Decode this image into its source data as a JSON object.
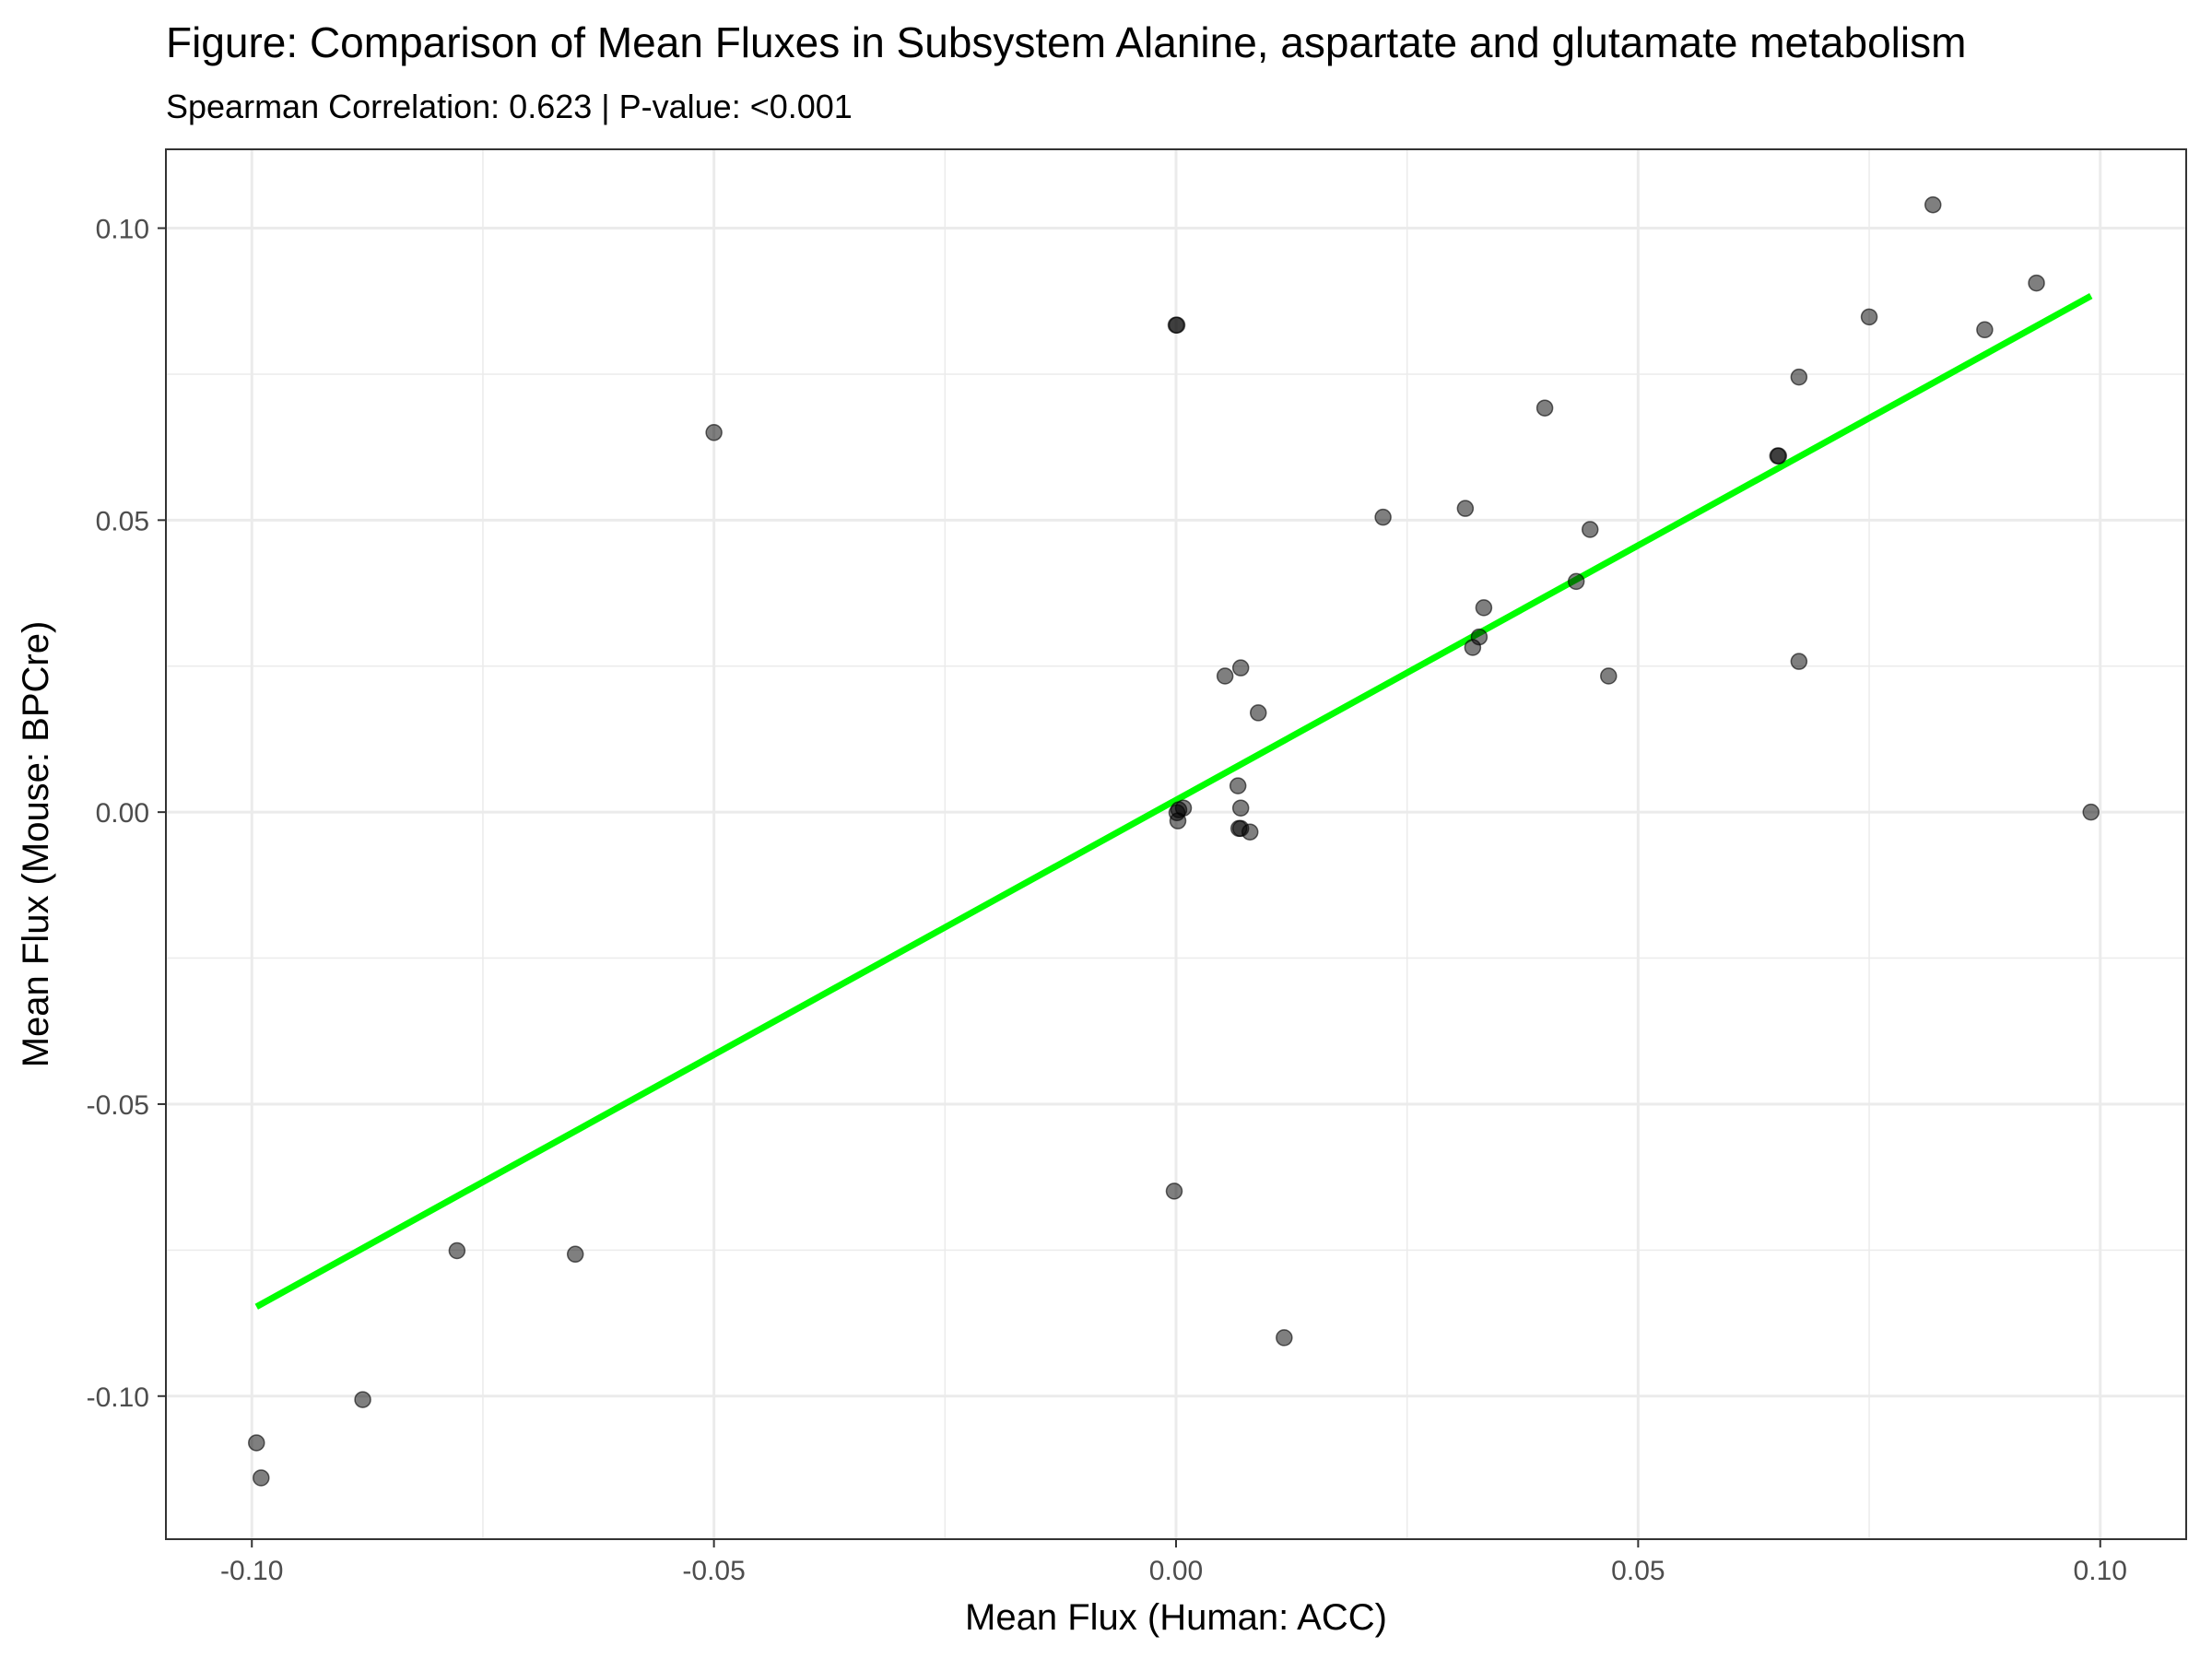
{
  "chart_data": {
    "type": "scatter",
    "title": "Figure: Comparison of Mean Fluxes in Subsystem Alanine, aspartate and glutamate metabolism",
    "subtitle": "Spearman Correlation: 0.623 | P-value: <0.001",
    "xlabel": "Mean Flux (Human: ACC)",
    "ylabel": "Mean Flux (Mouse: BPCre)",
    "xlim": [
      -0.1093,
      0.1093
    ],
    "ylim": [
      -0.1245,
      0.1135
    ],
    "x_ticks": [
      {
        "value": -0.1,
        "label": "-0.10"
      },
      {
        "value": -0.05,
        "label": "-0.05"
      },
      {
        "value": 0.0,
        "label": "0.00"
      },
      {
        "value": 0.05,
        "label": "0.05"
      },
      {
        "value": 0.1,
        "label": "0.10"
      }
    ],
    "y_ticks": [
      {
        "value": -0.1,
        "label": "-0.10"
      },
      {
        "value": -0.05,
        "label": "-0.05"
      },
      {
        "value": 0.0,
        "label": "0.00"
      },
      {
        "value": 0.05,
        "label": "0.05"
      },
      {
        "value": 0.1,
        "label": "0.10"
      }
    ],
    "grid": true,
    "colors": {
      "point": "#000000",
      "point_opacity": 0.5,
      "fit_line": "#00ff00",
      "grid": "#ebebeb",
      "panel_border": "#333333"
    },
    "points": [
      {
        "x": 0.0819,
        "y": 0.104
      },
      {
        "x": 0.0931,
        "y": 0.0906
      },
      {
        "x": 0.075,
        "y": 0.0848
      },
      {
        "x": 0.0875,
        "y": 0.0826
      },
      {
        "x": 0.0,
        "y": 0.0834
      },
      {
        "x": 0.0001,
        "y": 0.0834
      },
      {
        "x": 0.0674,
        "y": 0.0745
      },
      {
        "x": 0.0399,
        "y": 0.0692
      },
      {
        "x": -0.05,
        "y": 0.065
      },
      {
        "x": 0.0651,
        "y": 0.061
      },
      {
        "x": 0.0652,
        "y": 0.061
      },
      {
        "x": 0.0313,
        "y": 0.052
      },
      {
        "x": 0.0224,
        "y": 0.0505
      },
      {
        "x": 0.0448,
        "y": 0.0484
      },
      {
        "x": 0.0433,
        "y": 0.0395
      },
      {
        "x": 0.0333,
        "y": 0.035
      },
      {
        "x": 0.0328,
        "y": 0.03
      },
      {
        "x": 0.0321,
        "y": 0.0282
      },
      {
        "x": 0.0674,
        "y": 0.0258
      },
      {
        "x": 0.007,
        "y": 0.0247
      },
      {
        "x": 0.0053,
        "y": 0.0233
      },
      {
        "x": 0.0468,
        "y": 0.0233
      },
      {
        "x": 0.0089,
        "y": 0.017
      },
      {
        "x": 0.0067,
        "y": 0.0045
      },
      {
        "x": 0.0008,
        "y": 0.0007
      },
      {
        "x": 0.0003,
        "y": 0.0004
      },
      {
        "x": 0.0001,
        "y": -0.0001
      },
      {
        "x": 0.0002,
        "y": -0.0015
      },
      {
        "x": 0.007,
        "y": 0.0007
      },
      {
        "x": 0.0068,
        "y": -0.0028
      },
      {
        "x": 0.007,
        "y": -0.0028
      },
      {
        "x": 0.008,
        "y": -0.0034
      },
      {
        "x": 0.099,
        "y": 0.0
      },
      {
        "x": -0.0002,
        "y": -0.0649
      },
      {
        "x": -0.0778,
        "y": -0.0751
      },
      {
        "x": -0.065,
        "y": -0.0757
      },
      {
        "x": 0.0117,
        "y": -0.09
      },
      {
        "x": -0.088,
        "y": -0.1006
      },
      {
        "x": -0.0995,
        "y": -0.108
      },
      {
        "x": -0.099,
        "y": -0.114
      }
    ],
    "fit_line": {
      "x": [
        -0.0995,
        0.099
      ],
      "y": [
        -0.0847,
        0.0884
      ]
    }
  }
}
